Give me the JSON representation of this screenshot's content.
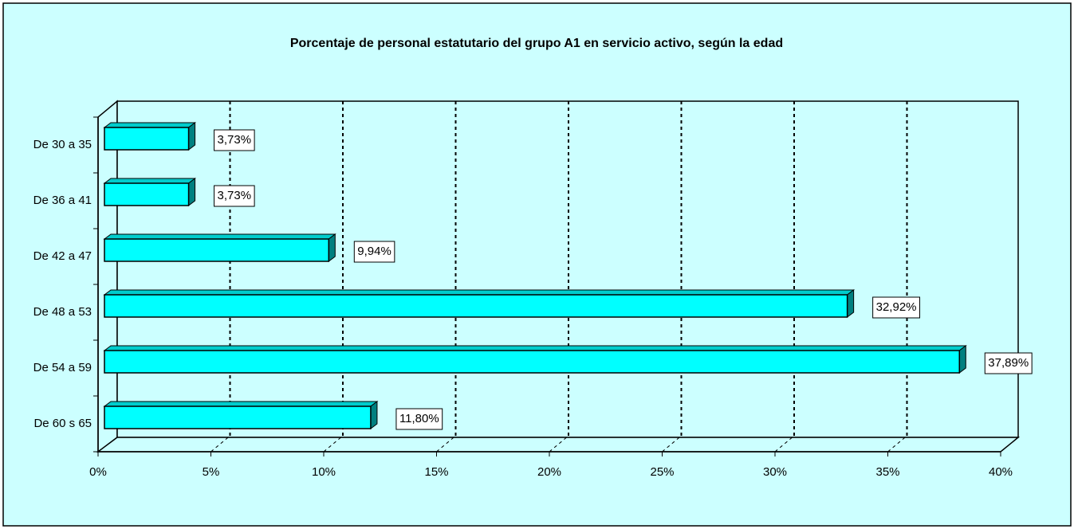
{
  "chart_data": {
    "type": "bar",
    "orientation": "horizontal",
    "title": "Porcentaje de personal estatutario del grupo A1 en servicio activo, según la edad",
    "categories": [
      "De 30 a 35",
      "De 36 a 41",
      "De 42 a 47",
      "De 48 a 53",
      "De 54 a 59",
      "De 60 s 65"
    ],
    "values": [
      3.73,
      3.73,
      9.94,
      32.92,
      37.89,
      11.8
    ],
    "value_labels": [
      "3,73%",
      "3,73%",
      "9,94%",
      "32,92%",
      "37,89%",
      "11,80%"
    ],
    "color": "#00ffff",
    "xlim": [
      0,
      40
    ],
    "xticks": [
      {
        "value": 0,
        "label": "0%"
      },
      {
        "value": 5,
        "label": "5%"
      },
      {
        "value": 10,
        "label": "10%"
      },
      {
        "value": 15,
        "label": "15%"
      },
      {
        "value": 20,
        "label": "20%"
      },
      {
        "value": 25,
        "label": "25%"
      },
      {
        "value": 30,
        "label": "30%"
      },
      {
        "value": 35,
        "label": "35%"
      },
      {
        "value": 40,
        "label": "40%"
      }
    ],
    "grid": true
  }
}
